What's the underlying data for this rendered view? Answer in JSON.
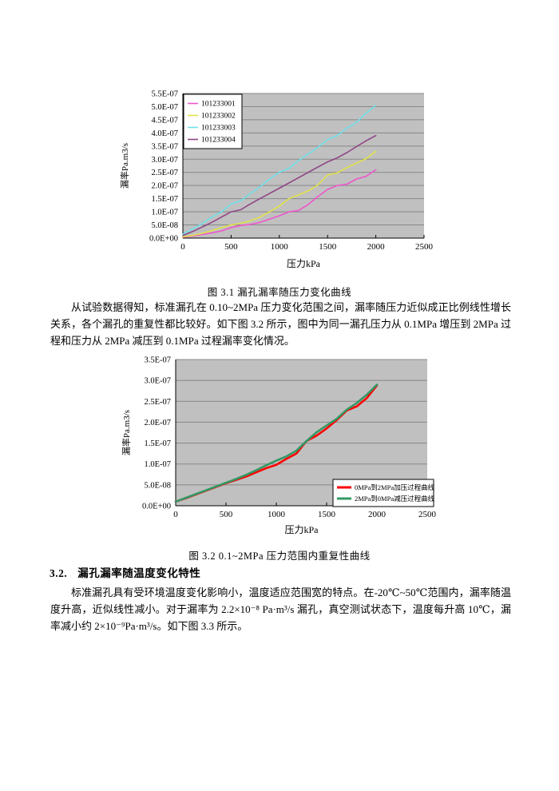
{
  "accent_colors": {
    "plot_background": "#c0c0c0",
    "grid": "#878787",
    "axis": "#000000"
  },
  "captions": {
    "fig31": "图 3.1 漏孔漏率随压力变化曲线",
    "fig32": "图 3.2  0.1~2MPa 压力范围内重复性曲线"
  },
  "section": {
    "number": "3.2.",
    "title": "漏孔漏率随温度变化特性"
  },
  "paragraphs": {
    "p1": "从试验数据得知，标准漏孔在 0.10~2MPa 压力变化范围之间，漏率随压力近似成正比例线性增长关系，各个漏孔的重复性都比较好。如下图 3.2 所示，图中为同一漏孔压力从 0.1MPa 增压到 2MPa 过程和压力从 2MPa 减压到 0.1MPa 过程漏率变化情况。",
    "p2": "标准漏孔具有受环境温度变化影响小，温度适应范围宽的特点。在-20℃~50℃范围内，漏率随温度升高，近似线性减小。对于漏率为 2.2×10⁻⁸ Pa·m³/s 漏孔，真空测试状态下，温度每升高 10℃，漏率减小约 2×10⁻⁹Pa·m³/s。如下图 3.3 所示。"
  },
  "chart_data": [
    {
      "type": "line",
      "title": "",
      "xlabel": "压力kPa",
      "ylabel": "漏率Pa.m3/s",
      "xlim": [
        0,
        2500
      ],
      "ylim": [
        0,
        5.5e-07
      ],
      "xticks": [
        "0",
        "500",
        "1000",
        "1500",
        "2000",
        "2500"
      ],
      "ytick_labels": [
        "0.0E+00",
        "5.0E-08",
        "1.0E-07",
        "1.5E-07",
        "2.0E-07",
        "2.5E-07",
        "3.0E-07",
        "3.5E-07",
        "4.0E-07",
        "4.5E-07",
        "5.0E-07",
        "5.5E-07"
      ],
      "grid": "horizontal",
      "plot_bg": "#c0c0c0",
      "legend_position": "top-left",
      "x": [
        0,
        100,
        200,
        300,
        400,
        500,
        600,
        700,
        800,
        900,
        1000,
        1100,
        1200,
        1300,
        1400,
        1500,
        1600,
        1700,
        1800,
        1900,
        2000
      ],
      "series": [
        {
          "name": "101233001",
          "color": "#ee55cc",
          "y": [
            3e-09,
            8e-09,
            1.4e-08,
            2e-08,
            2.7e-08,
            4e-08,
            4.8e-08,
            5.2e-08,
            6e-08,
            7.2e-08,
            8.5e-08,
            1e-07,
            1.05e-07,
            1.28e-07,
            1.58e-07,
            1.85e-07,
            2e-07,
            2.05e-07,
            2.25e-07,
            2.35e-07,
            2.6e-07
          ]
        },
        {
          "name": "101233002",
          "color": "#e2e24a",
          "y": [
            5e-09,
            1e-08,
            1.8e-08,
            2.8e-08,
            4e-08,
            5e-08,
            5.6e-08,
            6.6e-08,
            8e-08,
            1e-07,
            1.22e-07,
            1.5e-07,
            1.65e-07,
            1.8e-07,
            2.02e-07,
            2.4e-07,
            2.48e-07,
            2.68e-07,
            2.85e-07,
            3.02e-07,
            3.3e-07
          ]
        },
        {
          "name": "101233003",
          "color": "#6fdfe9",
          "y": [
            1.5e-08,
            3.5e-08,
            5.5e-08,
            8e-08,
            1e-07,
            1.3e-07,
            1.42e-07,
            1.7e-07,
            1.95e-07,
            2.25e-07,
            2.5e-07,
            2.65e-07,
            2.95e-07,
            3.2e-07,
            3.45e-07,
            3.75e-07,
            3.9e-07,
            4.18e-07,
            4.4e-07,
            4.75e-07,
            5.05e-07
          ]
        },
        {
          "name": "101233004",
          "color": "#8e4585",
          "y": [
            1e-08,
            2.5e-08,
            4.2e-08,
            6e-08,
            8e-08,
            1e-07,
            1.08e-07,
            1.3e-07,
            1.5e-07,
            1.7e-07,
            1.9e-07,
            2.1e-07,
            2.3e-07,
            2.5e-07,
            2.7e-07,
            2.9e-07,
            3.05e-07,
            3.25e-07,
            3.48e-07,
            3.7e-07,
            3.9e-07
          ]
        }
      ]
    },
    {
      "type": "line",
      "title": "",
      "xlabel": "压力kPa",
      "ylabel": "漏率Pa.m3/s",
      "xlim": [
        0,
        2500
      ],
      "ylim": [
        0,
        3.5e-07
      ],
      "xticks": [
        "0",
        "500",
        "1000",
        "1500",
        "2000",
        "2500"
      ],
      "ytick_labels": [
        "0.0E+00",
        "5.0E-08",
        "1.0E-07",
        "1.5E-07",
        "2.0E-07",
        "2.5E-07",
        "3.0E-07",
        "3.5E-07"
      ],
      "grid": "horizontal",
      "plot_bg": "#c0c0c0",
      "legend_position": "bottom-right",
      "x": [
        0,
        100,
        200,
        300,
        400,
        500,
        600,
        700,
        800,
        900,
        1000,
        1100,
        1200,
        1300,
        1400,
        1500,
        1600,
        1700,
        1800,
        1900,
        2000
      ],
      "series": [
        {
          "name": "0MPa到2MPa加压过程曲线",
          "color": "#ff0000",
          "y": [
            1e-08,
            1.8e-08,
            2.7e-08,
            3.6e-08,
            4.5e-08,
            5.4e-08,
            6.2e-08,
            7e-08,
            8e-08,
            9e-08,
            9.8e-08,
            1.12e-07,
            1.25e-07,
            1.55e-07,
            1.68e-07,
            1.85e-07,
            2.05e-07,
            2.28e-07,
            2.38e-07,
            2.58e-07,
            2.88e-07
          ]
        },
        {
          "name": "2MPa到0MPa减压过程曲线",
          "color": "#339966",
          "y": [
            1e-08,
            1.9e-08,
            2.8e-08,
            3.7e-08,
            4.6e-08,
            5.5e-08,
            6.4e-08,
            7.4e-08,
            8.5e-08,
            9.7e-08,
            1.08e-07,
            1.18e-07,
            1.32e-07,
            1.55e-07,
            1.76e-07,
            1.92e-07,
            2.08e-07,
            2.3e-07,
            2.46e-07,
            2.66e-07,
            2.9e-07
          ]
        }
      ]
    }
  ]
}
